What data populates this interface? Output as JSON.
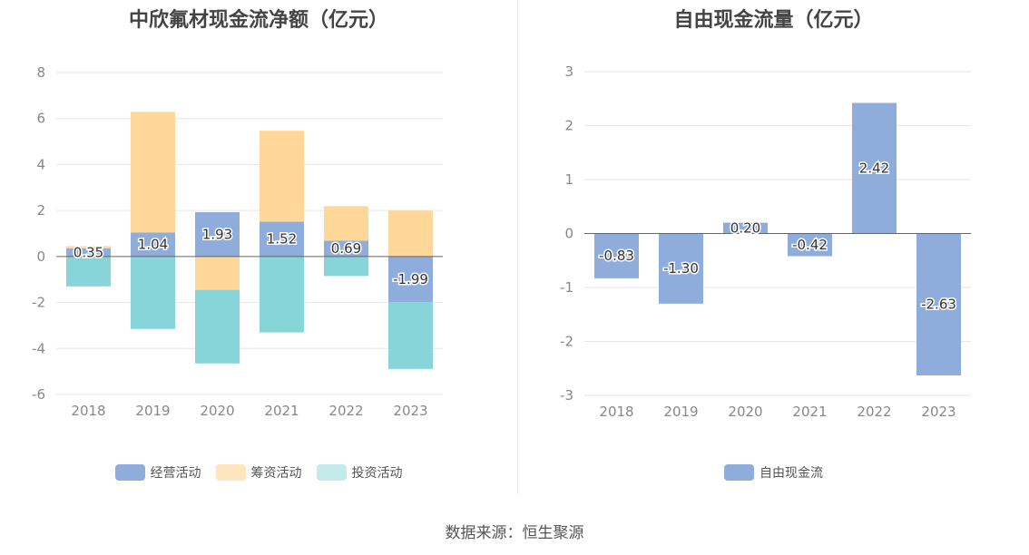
{
  "chart_data": [
    {
      "type": "bar",
      "stacked": true,
      "title": "中欣氟材现金流净额（亿元）",
      "categories": [
        "2018",
        "2019",
        "2020",
        "2021",
        "2022",
        "2023"
      ],
      "ylim": [
        -6,
        8
      ],
      "yticks": [
        -6,
        -4,
        -2,
        0,
        2,
        4,
        6,
        8
      ],
      "grid": true,
      "legend_position": "bottom",
      "series": [
        {
          "name": "经营活动",
          "color": "#8eaddb",
          "values": [
            0.35,
            1.04,
            1.93,
            1.52,
            0.69,
            -1.99
          ],
          "labels": [
            "0.35",
            "1.04",
            "1.93",
            "1.52",
            "0.69",
            "-1.99"
          ]
        },
        {
          "name": "筹资活动",
          "color": "#ffd899",
          "values": [
            0.1,
            5.25,
            -1.45,
            3.95,
            1.5,
            2.0
          ]
        },
        {
          "name": "投资活动",
          "color": "#88d5d9",
          "values": [
            -1.3,
            -3.15,
            -3.2,
            -3.3,
            -0.85,
            -2.9
          ]
        }
      ]
    },
    {
      "type": "bar",
      "title": "自由现金流量（亿元）",
      "categories": [
        "2018",
        "2019",
        "2020",
        "2021",
        "2022",
        "2023"
      ],
      "ylim": [
        -3,
        3
      ],
      "yticks": [
        -3,
        -2,
        -1,
        0,
        1,
        2,
        3
      ],
      "grid": true,
      "legend_position": "bottom",
      "series": [
        {
          "name": "自由现金流",
          "color": "#8eaddb",
          "values": [
            -0.83,
            -1.3,
            0.2,
            -0.42,
            2.42,
            -2.63
          ],
          "labels": [
            "-0.83",
            "-1.30",
            "0.20",
            "-0.42",
            "2.42",
            "-2.63"
          ]
        }
      ]
    }
  ],
  "legend_colors": {
    "operating": "#8eaddb",
    "financing": "#ffe5bf",
    "investing": "#c4eaec",
    "fcf": "#8eaddb"
  },
  "source": "数据来源：恒生聚源"
}
